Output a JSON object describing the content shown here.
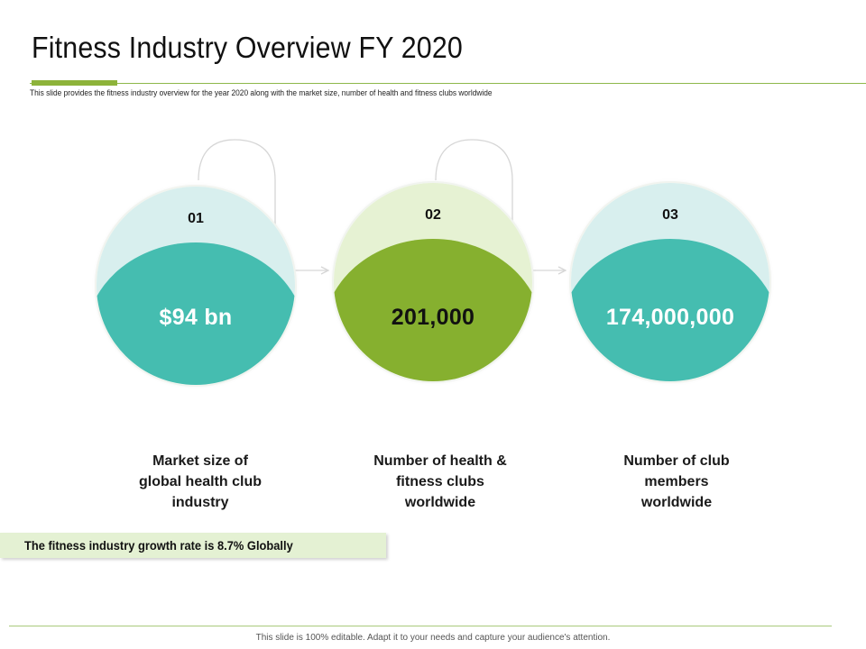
{
  "slide": {
    "title": "Fitness Industry Overview FY 2020",
    "subtitle": "This slide provides the fitness industry overview for the year 2020 along with the market size, number of health and fitness clubs worldwide",
    "footer": "This slide is 100% editable. Adapt it to your needs and capture your audience's attention."
  },
  "colors": {
    "accent_green": "#8db33a",
    "teal": "#45bdb0",
    "teal_light": "#d8efee",
    "green": "#86b02f",
    "green_light": "#e6f2d3"
  },
  "items": [
    {
      "number": "01",
      "value": "$94 bn",
      "description_lines": [
        "Market size of",
        "global health club",
        "industry"
      ]
    },
    {
      "number": "02",
      "value": "201,000",
      "description_lines": [
        "Number of health &",
        "fitness clubs",
        "worldwide"
      ]
    },
    {
      "number": "03",
      "value": "174,000,000",
      "description_lines": [
        "Number of club",
        "members",
        "worldwide"
      ]
    }
  ],
  "growth_note": "The fitness industry growth rate is 8.7% Globally"
}
